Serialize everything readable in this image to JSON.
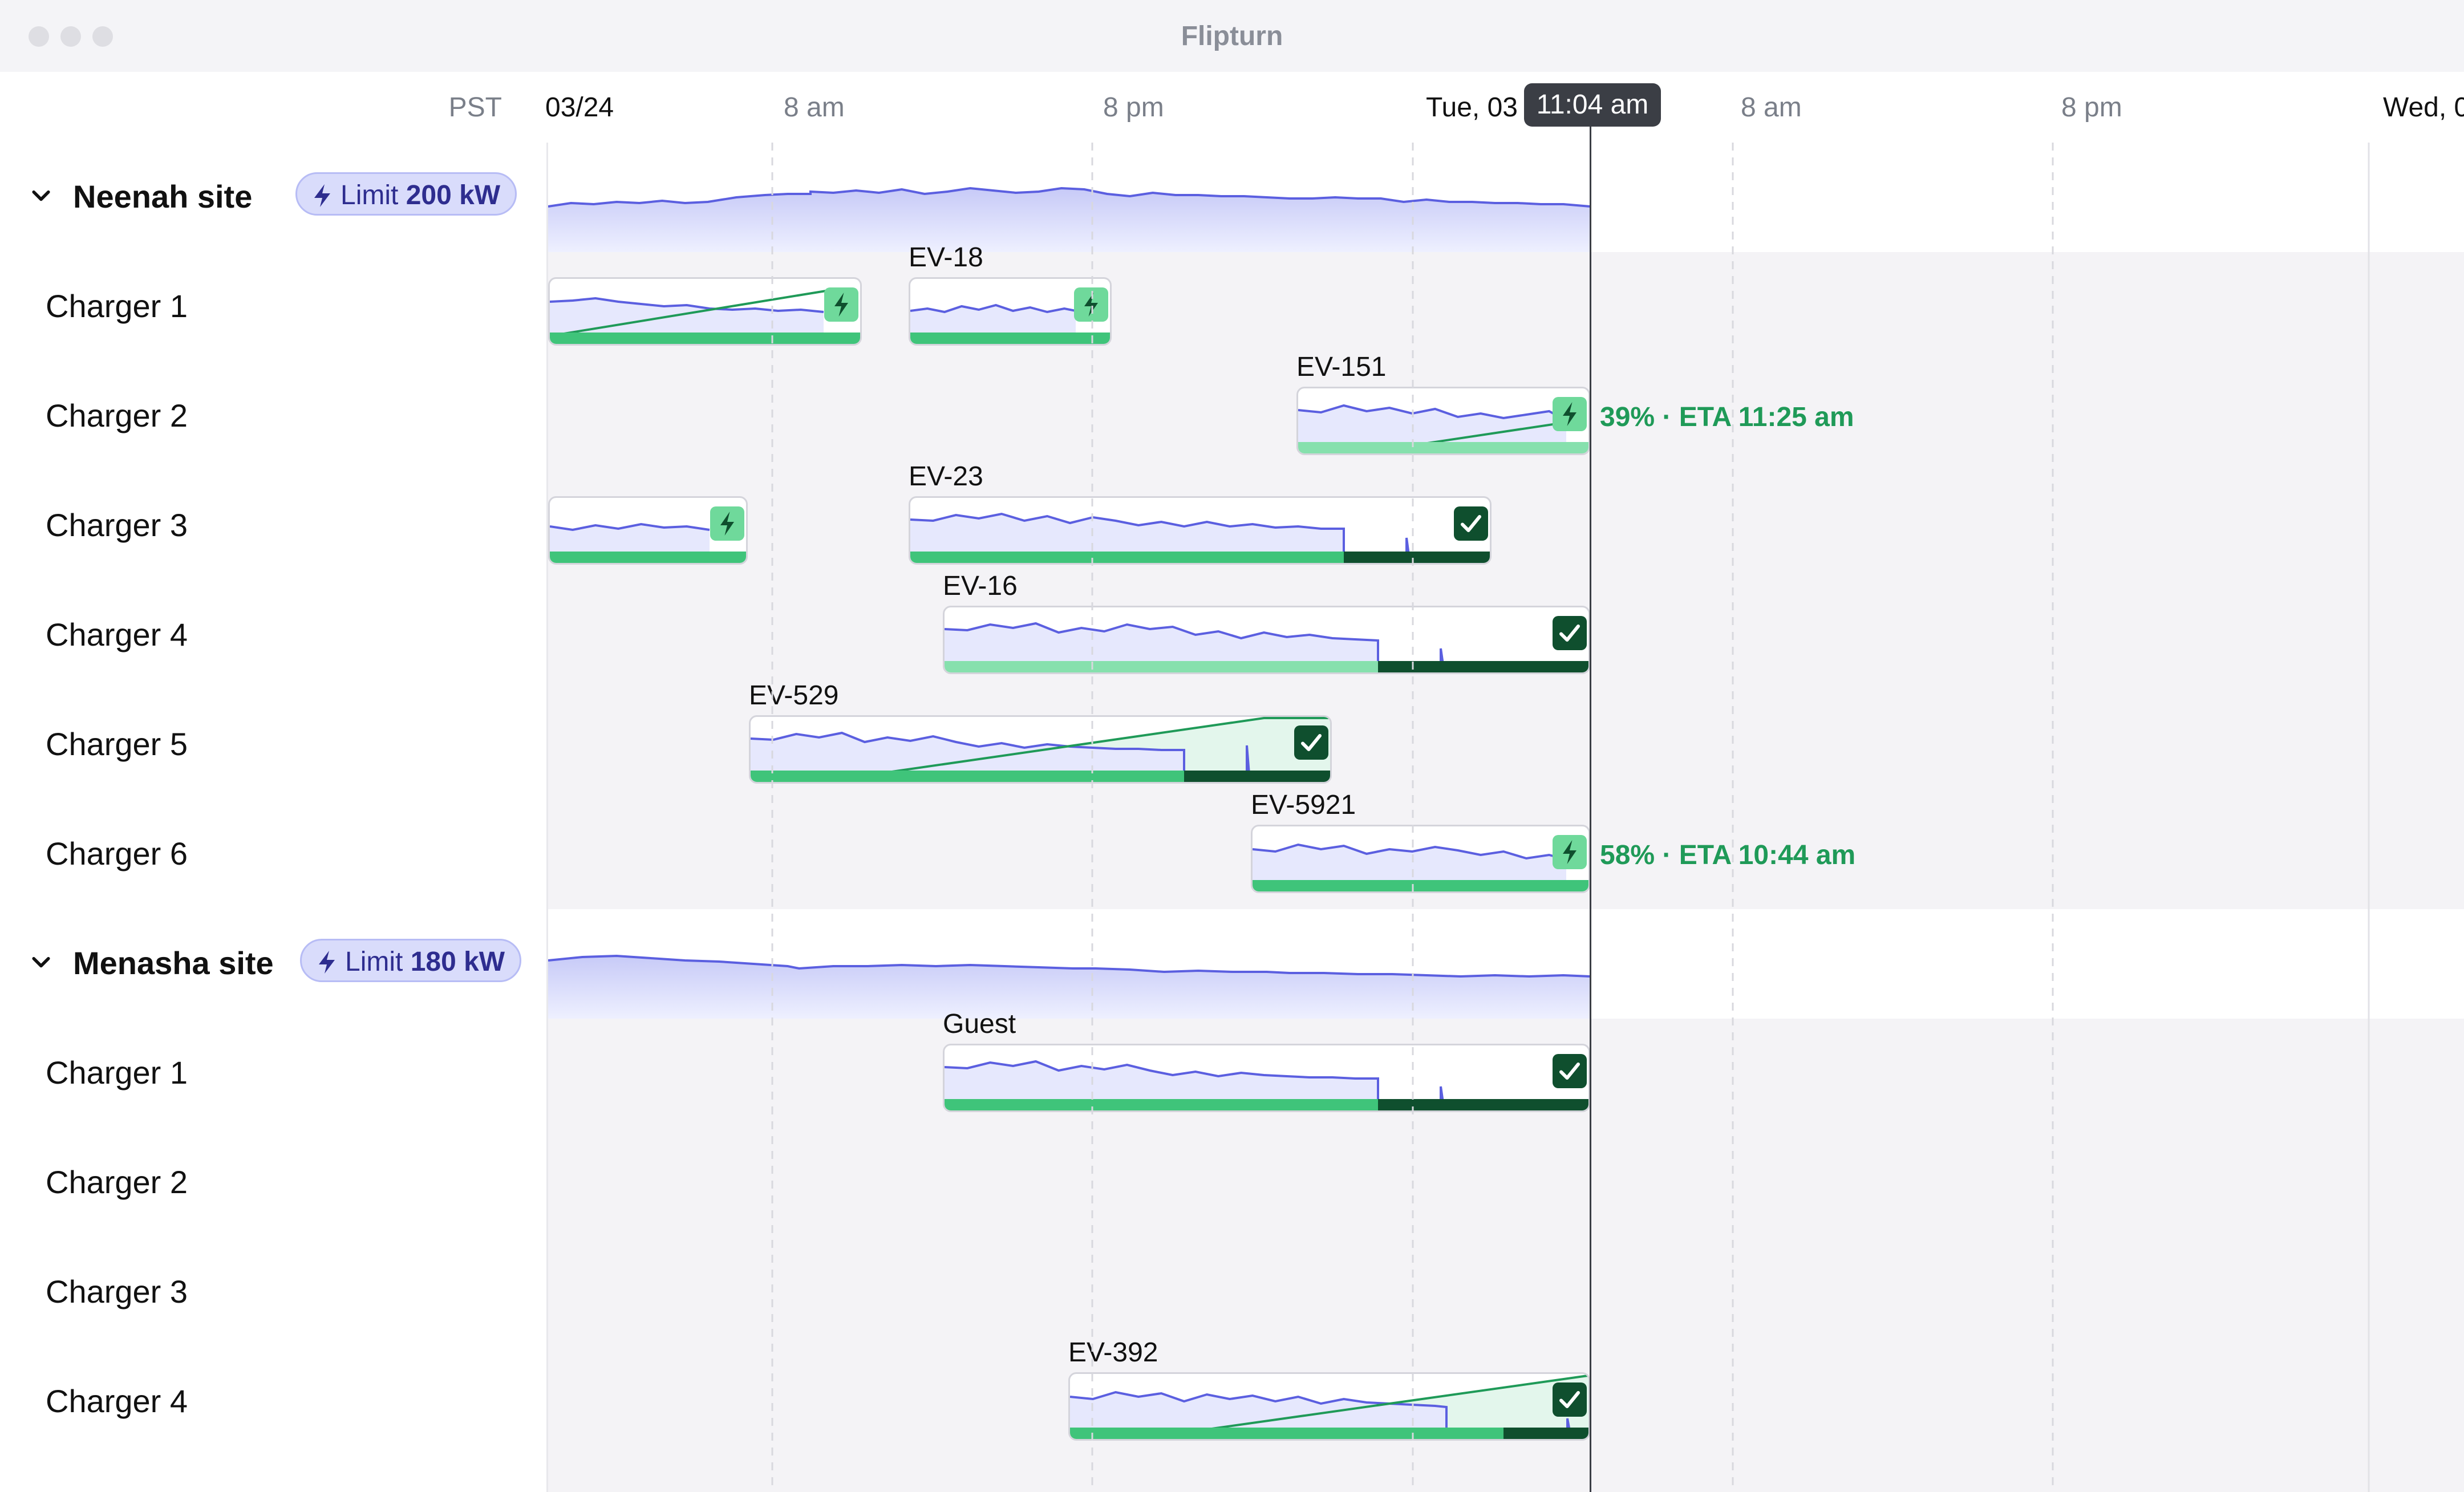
{
  "app": {
    "title": "Flipturn"
  },
  "header": {
    "timezone": "PST",
    "ticks": [
      {
        "label": "03/24",
        "type": "date"
      },
      {
        "label": "8 am",
        "type": "time"
      },
      {
        "label": "8 pm",
        "type": "time"
      },
      {
        "label": "Tue, 03",
        "type": "date"
      },
      {
        "label": "8 am",
        "type": "time"
      },
      {
        "label": "8 pm",
        "type": "time"
      },
      {
        "label": "Wed, 0",
        "type": "date"
      }
    ],
    "now_label": "11:04 am"
  },
  "sites": [
    {
      "name": "Neenah site",
      "limit_prefix": "Limit",
      "limit_value": "200 kW",
      "chargers": [
        {
          "name": "Charger 1",
          "sessions": [
            {
              "id": "",
              "status": "charging"
            },
            {
              "id": "EV-18",
              "status": "charging"
            }
          ]
        },
        {
          "name": "Charger 2",
          "sessions": [
            {
              "id": "EV-151",
              "status": "charging",
              "progress": "39%",
              "eta": "ETA 11:25 am"
            }
          ]
        },
        {
          "name": "Charger 3",
          "sessions": [
            {
              "id": "",
              "status": "charging"
            },
            {
              "id": "EV-23",
              "status": "complete"
            }
          ]
        },
        {
          "name": "Charger 4",
          "sessions": [
            {
              "id": "EV-16",
              "status": "complete"
            }
          ]
        },
        {
          "name": "Charger 5",
          "sessions": [
            {
              "id": "EV-529",
              "status": "complete"
            }
          ]
        },
        {
          "name": "Charger 6",
          "sessions": [
            {
              "id": "EV-5921",
              "status": "charging",
              "progress": "58%",
              "eta": "ETA 10:44 am"
            }
          ]
        }
      ]
    },
    {
      "name": "Menasha site",
      "limit_prefix": "Limit",
      "limit_value": "180 kW",
      "chargers": [
        {
          "name": "Charger 1",
          "sessions": [
            {
              "id": "Guest",
              "status": "complete"
            }
          ]
        },
        {
          "name": "Charger 2",
          "sessions": []
        },
        {
          "name": "Charger 3",
          "sessions": []
        },
        {
          "name": "Charger 4",
          "sessions": [
            {
              "id": "EV-392",
              "status": "complete"
            }
          ]
        }
      ]
    }
  ],
  "icons": {
    "collapse": "chevron-down-icon",
    "limit": "bolt-icon",
    "charging": "bolt-icon",
    "complete": "check-icon"
  },
  "colors": {
    "accent": "#5b5fe0",
    "charging_green": "#3fc47a",
    "complete_dark": "#0f4f2e",
    "status_text": "#1f9a58"
  }
}
